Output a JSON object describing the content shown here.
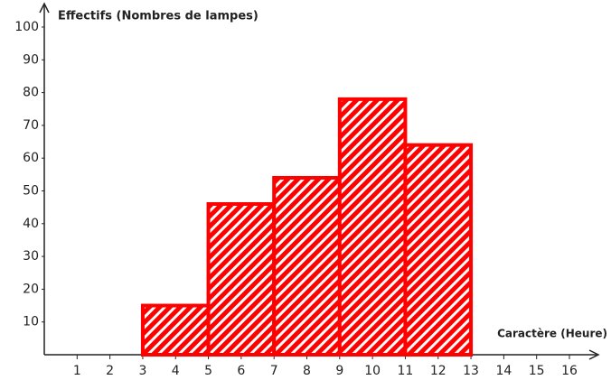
{
  "chart_data": {
    "type": "histogram",
    "ylabel": "Effectifs (Nombres de lampes)",
    "xlabel": "Caractère (Heure)",
    "bins": [
      3,
      5,
      7,
      9,
      11,
      13
    ],
    "counts": [
      15,
      46,
      54,
      78,
      64
    ],
    "color": "#ff0000",
    "hatch": true,
    "xlim": [
      0,
      16
    ],
    "xticks": [
      1,
      2,
      3,
      4,
      5,
      6,
      7,
      8,
      9,
      10,
      11,
      12,
      13,
      14,
      15,
      16
    ],
    "ylim": [
      0,
      100
    ],
    "yticks": [
      10,
      20,
      30,
      40,
      50,
      60,
      70,
      80,
      90,
      100
    ]
  }
}
